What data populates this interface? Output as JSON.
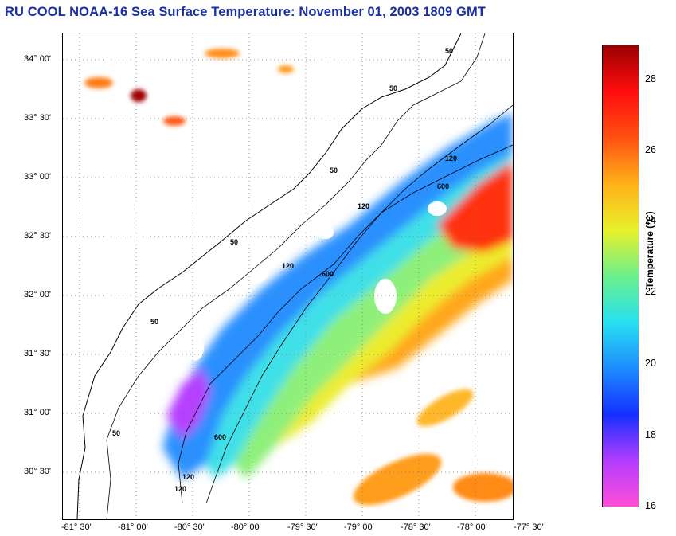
{
  "title": "RU COOL  NOAA-16  Sea Surface Temperature:  November 01, 2003 1809 GMT",
  "map": {
    "lat_labels": [
      "34° 00'",
      "33° 30'",
      "33° 00'",
      "32° 30'",
      "32° 00'",
      "31° 30'",
      "31° 00'",
      "30° 30'"
    ],
    "lon_labels": [
      "-81° 30'",
      "-81° 00'",
      "-80° 30'",
      "-80° 00'",
      "-79° 30'",
      "-79° 00'",
      "-78° 30'",
      "-78° 00'",
      "-77° 30'"
    ],
    "isobath_labels": [
      "50",
      "50",
      "50",
      "50",
      "50",
      "50",
      "120",
      "120",
      "120",
      "120",
      "120",
      "600",
      "600",
      "600"
    ]
  },
  "colorbar": {
    "title": "Temperature (°C)",
    "labels": [
      "28",
      "26",
      "24",
      "22",
      "20",
      "18",
      "16"
    ],
    "range": [
      16,
      29
    ],
    "colors": [
      "#ff4fd8",
      "#b23cff",
      "#1430ff",
      "#1e8cff",
      "#27e0f0",
      "#6cf08a",
      "#e9f02a",
      "#ffb11a",
      "#ff5012",
      "#ff0d0d",
      "#9a0000"
    ]
  }
}
